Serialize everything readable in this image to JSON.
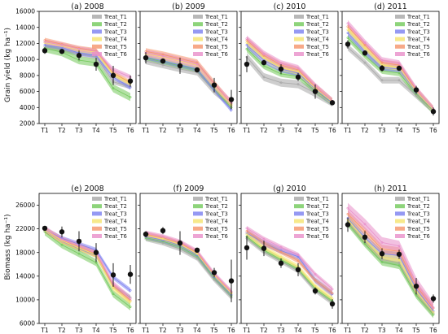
{
  "y_labels": [
    "Grain yield (kg ha⁻¹)",
    "Biomass (kg ha⁻¹)"
  ],
  "legend": [
    {
      "name": "Treat_T1",
      "color": "#a6a6a6"
    },
    {
      "name": "Treat_T2",
      "color": "#72c95a"
    },
    {
      "name": "Treat_T3",
      "color": "#7b7ff0"
    },
    {
      "name": "Treat_T4",
      "color": "#f5e46e"
    },
    {
      "name": "Treat_T5",
      "color": "#f5936a"
    },
    {
      "name": "Treat_T6",
      "color": "#e88ec9"
    }
  ],
  "chart_data": [
    {
      "type": "line",
      "title": "(a) 2008",
      "ylabel": "Grain yield (kg ha⁻¹)",
      "categories": [
        "T1",
        "T2",
        "T3",
        "T4",
        "T5",
        "T6"
      ],
      "ylim": [
        2000,
        16000
      ],
      "yticks": [
        2000,
        4000,
        6000,
        8000,
        10000,
        12000,
        14000,
        16000
      ],
      "series": [
        {
          "name": "Treat_T1",
          "values": [
            11600,
            11200,
            10700,
            10300,
            7200,
            6600
          ],
          "band": 300
        },
        {
          "name": "Treat_T2",
          "values": [
            11400,
            10900,
            9900,
            9600,
            6400,
            5300
          ],
          "band": 500
        },
        {
          "name": "Treat_T3",
          "values": [
            11800,
            11500,
            10800,
            10500,
            7800,
            6500
          ],
          "band": 300
        },
        {
          "name": "Treat_T4",
          "values": [
            12100,
            11700,
            11200,
            10900,
            8100,
            7000
          ],
          "band": 300
        },
        {
          "name": "Treat_T5",
          "values": [
            12400,
            11900,
            11400,
            11100,
            8300,
            7100
          ],
          "band": 300
        },
        {
          "name": "Treat_T6",
          "values": [
            12200,
            11800,
            11300,
            11000,
            8700,
            7800
          ],
          "band": 300
        }
      ],
      "observed": {
        "values": [
          11100,
          11000,
          10500,
          9400,
          8000,
          7300
        ],
        "errors": [
          400,
          200,
          600,
          800,
          1200,
          700
        ]
      }
    },
    {
      "type": "line",
      "title": "(b) 2009",
      "ylabel": "",
      "categories": [
        "T1",
        "T2",
        "T3",
        "T4",
        "T5",
        "T6"
      ],
      "ylim": [
        2000,
        16000
      ],
      "yticks": [
        2000,
        4000,
        6000,
        8000,
        10000,
        12000,
        14000,
        16000
      ],
      "series": [
        {
          "name": "Treat_T1",
          "values": [
            9800,
            9300,
            8800,
            8400,
            6000,
            4300
          ],
          "band": 400
        },
        {
          "name": "Treat_T2",
          "values": [
            10200,
            9700,
            9200,
            8700,
            6300,
            4000
          ],
          "band": 300
        },
        {
          "name": "Treat_T3",
          "values": [
            10300,
            9800,
            9300,
            8800,
            6200,
            3700
          ],
          "band": 300
        },
        {
          "name": "Treat_T4",
          "values": [
            10700,
            10300,
            9800,
            9300,
            6700,
            4300
          ],
          "band": 400
        },
        {
          "name": "Treat_T5",
          "values": [
            11000,
            10600,
            10100,
            9600,
            7000,
            4500
          ],
          "band": 400
        },
        {
          "name": "Treat_T6",
          "values": [
            10800,
            10400,
            9900,
            9400,
            6800,
            4600
          ],
          "band": 400
        }
      ],
      "observed": {
        "values": [
          10200,
          9800,
          9200,
          8700,
          6800,
          5000
        ],
        "errors": [
          700,
          300,
          1000,
          300,
          900,
          1200
        ]
      }
    },
    {
      "type": "line",
      "title": "(c) 2010",
      "ylabel": "",
      "categories": [
        "T1",
        "T2",
        "T3",
        "T4",
        "T5",
        "T6"
      ],
      "ylim": [
        2000,
        16000
      ],
      "yticks": [
        2000,
        4000,
        6000,
        8000,
        10000,
        12000,
        14000,
        16000
      ],
      "series": [
        {
          "name": "Treat_T1",
          "values": [
            10300,
            7800,
            7100,
            6900,
            5800,
            4600
          ],
          "band": 500
        },
        {
          "name": "Treat_T2",
          "values": [
            11300,
            9200,
            8200,
            7900,
            6100,
            4600
          ],
          "band": 400
        },
        {
          "name": "Treat_T3",
          "values": [
            11800,
            9900,
            8800,
            8300,
            6300,
            4600
          ],
          "band": 400
        },
        {
          "name": "Treat_T4",
          "values": [
            12100,
            10200,
            9000,
            8500,
            6400,
            4700
          ],
          "band": 400
        },
        {
          "name": "Treat_T5",
          "values": [
            12400,
            10500,
            9300,
            8700,
            6600,
            4800
          ],
          "band": 400
        },
        {
          "name": "Treat_T6",
          "values": [
            12600,
            10700,
            9500,
            8900,
            6700,
            4800
          ],
          "band": 400
        }
      ],
      "observed": {
        "values": [
          9400,
          9600,
          8800,
          7800,
          6000,
          4600
        ],
        "errors": [
          1000,
          300,
          600,
          500,
          900,
          300
        ]
      }
    },
    {
      "type": "line",
      "title": "(d) 2011",
      "ylabel": "",
      "categories": [
        "T1",
        "T2",
        "T3",
        "T4",
        "T5",
        "T6"
      ],
      "ylim": [
        2000,
        16000
      ],
      "yticks": [
        2000,
        4000,
        6000,
        8000,
        10000,
        12000,
        14000,
        16000
      ],
      "series": [
        {
          "name": "Treat_T1",
          "values": [
            11500,
            9600,
            7400,
            7400,
            5500,
            3600
          ],
          "band": 400
        },
        {
          "name": "Treat_T2",
          "values": [
            12700,
            10500,
            8600,
            8300,
            5700,
            3600
          ],
          "band": 400
        },
        {
          "name": "Treat_T3",
          "values": [
            13300,
            11000,
            9000,
            8800,
            5900,
            3700
          ],
          "band": 400
        },
        {
          "name": "Treat_T4",
          "values": [
            13700,
            11400,
            9300,
            9000,
            6000,
            3700
          ],
          "band": 400
        },
        {
          "name": "Treat_T5",
          "values": [
            14100,
            11800,
            9600,
            9300,
            6200,
            3800
          ],
          "band": 400
        },
        {
          "name": "Treat_T6",
          "values": [
            14500,
            12100,
            9900,
            9500,
            6300,
            3800
          ],
          "band": 400
        }
      ],
      "observed": {
        "values": [
          11900,
          10800,
          8900,
          8900,
          6200,
          3500
        ],
        "errors": [
          500,
          300,
          400,
          300,
          500,
          500
        ]
      }
    },
    {
      "type": "line",
      "title": "(e) 2008",
      "ylabel": "Biomass (kg ha⁻¹)",
      "categories": [
        "T1",
        "T2",
        "T3",
        "T4",
        "T5",
        "T6"
      ],
      "ylim": [
        6000,
        28000
      ],
      "yticks": [
        6000,
        10000,
        14000,
        18000,
        22000,
        26000
      ],
      "series": [
        {
          "name": "Treat_T1",
          "values": [
            21700,
            19900,
            18600,
            17500,
            12300,
            10400
          ],
          "band": 400
        },
        {
          "name": "Treat_T2",
          "values": [
            21500,
            19300,
            17800,
            16300,
            11000,
            8800
          ],
          "band": 600
        },
        {
          "name": "Treat_T3",
          "values": [
            21900,
            20400,
            19400,
            18400,
            13800,
            11600
          ],
          "band": 400
        },
        {
          "name": "Treat_T4",
          "values": [
            21800,
            20000,
            18800,
            17600,
            12000,
            9700
          ],
          "band": 500
        },
        {
          "name": "Treat_T5",
          "values": [
            21800,
            20100,
            18900,
            17700,
            12400,
            9900
          ],
          "band": 500
        },
        {
          "name": "Treat_T6",
          "values": [
            22000,
            20200,
            19100,
            17900,
            12700,
            10200
          ],
          "band": 500
        }
      ],
      "observed": {
        "values": [
          22100,
          21500,
          19900,
          18000,
          14200,
          14300
        ],
        "errors": [
          300,
          900,
          1700,
          1600,
          2000,
          1600
        ]
      }
    },
    {
      "type": "line",
      "title": "(f) 2009",
      "ylabel": "",
      "categories": [
        "T1",
        "T2",
        "T3",
        "T4",
        "T5",
        "T6"
      ],
      "ylim": [
        6000,
        28000
      ],
      "yticks": [
        6000,
        10000,
        14000,
        18000,
        22000,
        26000
      ],
      "series": [
        {
          "name": "Treat_T1",
          "values": [
            20300,
            19600,
            18600,
            17000,
            13400,
            10400
          ],
          "band": 400
        },
        {
          "name": "Treat_T2",
          "values": [
            20500,
            19900,
            19000,
            17400,
            13700,
            10700
          ],
          "band": 400
        },
        {
          "name": "Treat_T3",
          "values": [
            20700,
            20100,
            19200,
            17600,
            13900,
            10900
          ],
          "band": 400
        },
        {
          "name": "Treat_T4",
          "values": [
            20900,
            20300,
            19400,
            17800,
            14100,
            11100
          ],
          "band": 400
        },
        {
          "name": "Treat_T5",
          "values": [
            21100,
            20500,
            19600,
            18000,
            14200,
            11200
          ],
          "band": 400
        },
        {
          "name": "Treat_T6",
          "values": [
            21300,
            20700,
            19800,
            18200,
            14400,
            11400
          ],
          "band": 400
        }
      ],
      "observed": {
        "values": [
          21100,
          21700,
          19600,
          18400,
          14600,
          13200
        ],
        "errors": [
          500,
          600,
          2000,
          200,
          800,
          3600
        ]
      }
    },
    {
      "type": "line",
      "title": "(g) 2010",
      "ylabel": "",
      "categories": [
        "T1",
        "T2",
        "T3",
        "T4",
        "T5",
        "T6"
      ],
      "ylim": [
        6000,
        28000
      ],
      "yticks": [
        6000,
        10000,
        14000,
        18000,
        22000,
        26000
      ],
      "series": [
        {
          "name": "Treat_T1",
          "values": [
            20400,
            18100,
            16500,
            14900,
            11600,
            9500
          ],
          "band": 400
        },
        {
          "name": "Treat_T2",
          "values": [
            20700,
            18400,
            16800,
            15200,
            11900,
            9800
          ],
          "band": 400
        },
        {
          "name": "Treat_T3",
          "values": [
            21300,
            19600,
            18300,
            17300,
            13300,
            11000
          ],
          "band": 500
        },
        {
          "name": "Treat_T4",
          "values": [
            21100,
            18800,
            17200,
            15600,
            12300,
            10200
          ],
          "band": 400
        },
        {
          "name": "Treat_T5",
          "values": [
            21600,
            19600,
            18100,
            16600,
            13300,
            11100
          ],
          "band": 400
        },
        {
          "name": "Treat_T6",
          "values": [
            22100,
            20300,
            18900,
            17600,
            14300,
            11800
          ],
          "band": 400
        }
      ],
      "observed": {
        "values": [
          18800,
          18700,
          16200,
          15100,
          11500,
          9300
        ],
        "errors": [
          2000,
          1300,
          800,
          1100,
          600,
          800
        ]
      }
    },
    {
      "type": "line",
      "title": "(h) 2011",
      "ylabel": "",
      "categories": [
        "T1",
        "T2",
        "T3",
        "T4",
        "T5",
        "T6"
      ],
      "ylim": [
        6000,
        28000
      ],
      "yticks": [
        6000,
        10000,
        14000,
        18000,
        22000,
        26000
      ],
      "series": [
        {
          "name": "Treat_T1",
          "values": [
            23200,
            19800,
            16800,
            16300,
            11100,
            7700
          ],
          "band": 600
        },
        {
          "name": "Treat_T2",
          "values": [
            23000,
            19500,
            16400,
            15800,
            10800,
            7500
          ],
          "band": 600
        },
        {
          "name": "Treat_T3",
          "values": [
            23800,
            20500,
            17800,
            17500,
            11800,
            8100
          ],
          "band": 600
        },
        {
          "name": "Treat_T4",
          "values": [
            23500,
            20100,
            17300,
            16800,
            11400,
            7900
          ],
          "band": 600
        },
        {
          "name": "Treat_T5",
          "values": [
            24500,
            21600,
            18600,
            18200,
            12400,
            8600
          ],
          "band": 700
        },
        {
          "name": "Treat_T6",
          "values": [
            25500,
            22800,
            19700,
            19100,
            12900,
            8700
          ],
          "band": 900
        }
      ],
      "observed": {
        "values": [
          22700,
          20600,
          17800,
          17700,
          12300,
          10200
        ],
        "errors": [
          1200,
          1000,
          900,
          800,
          1400,
          700
        ]
      }
    }
  ]
}
